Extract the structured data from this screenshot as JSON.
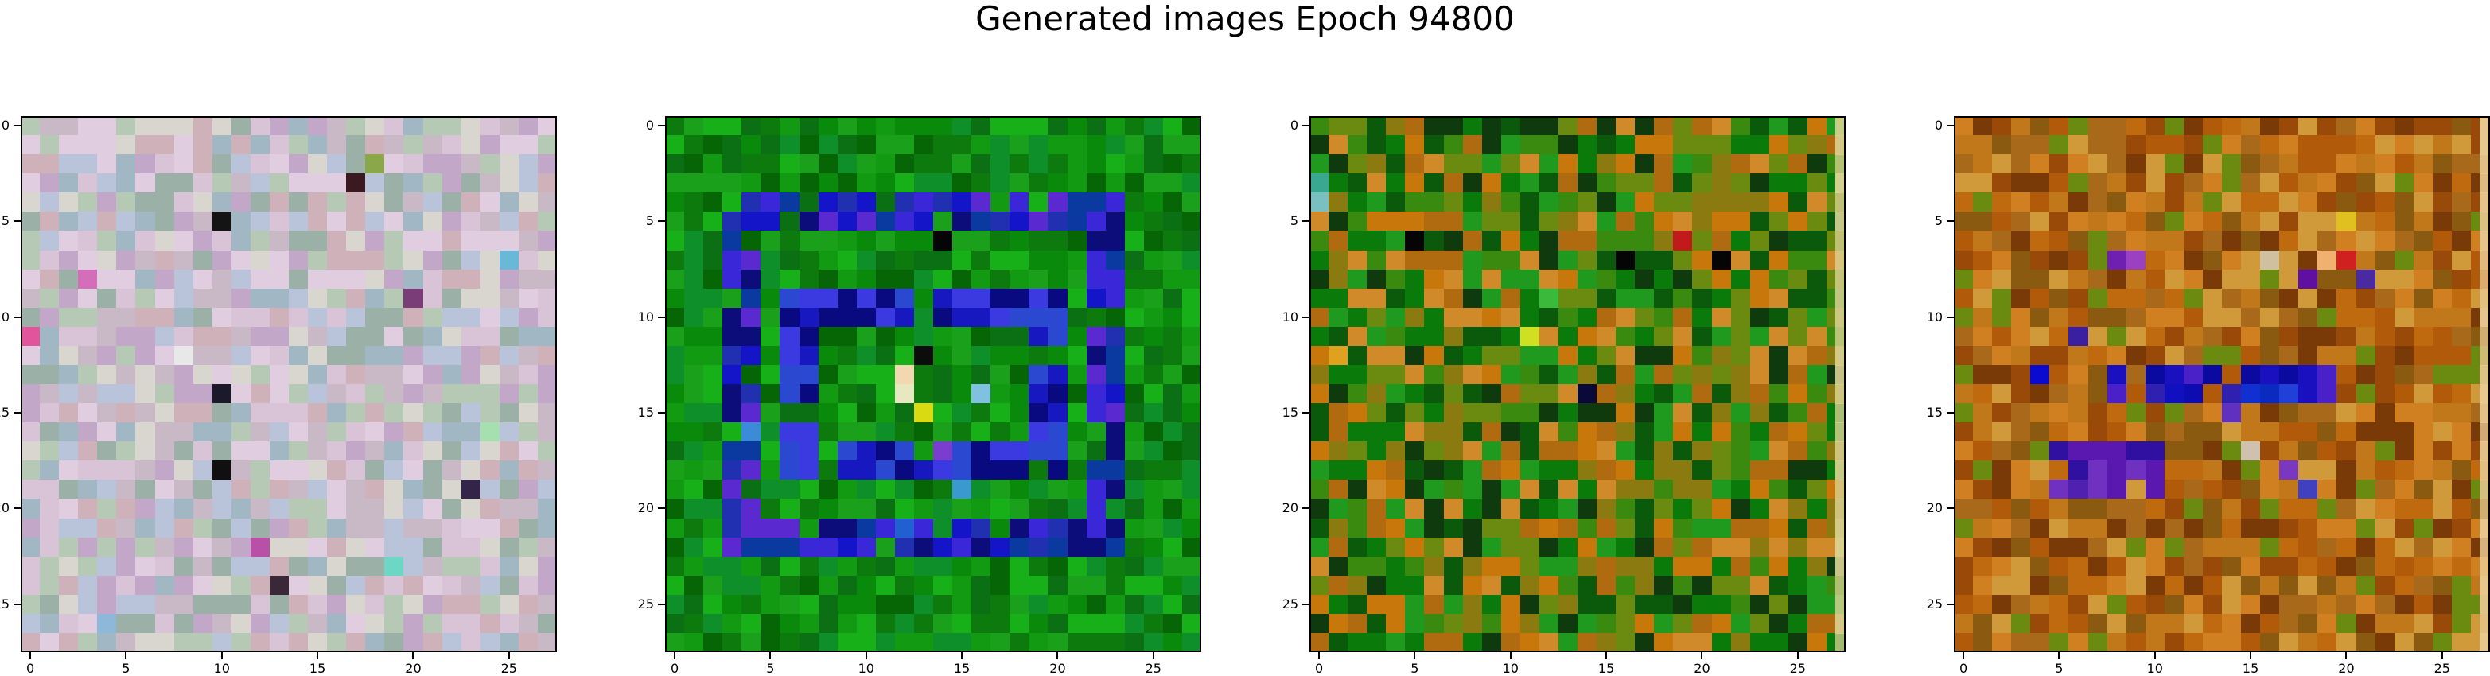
{
  "figure": {
    "title": "Generated images Epoch 94800"
  },
  "chart_data": [
    {
      "type": "heatmap",
      "grid": [
        28,
        28
      ],
      "xlim": [
        -0.5,
        27.5
      ],
      "ylim": [
        27.5,
        -0.5
      ],
      "x_ticks": [
        0,
        5,
        10,
        15,
        20,
        25
      ],
      "y_ticks": [
        0,
        5,
        10,
        15,
        20,
        25
      ],
      "palette": [
        "#c9b8c6",
        "#b5c9b4",
        "#d8c4d6",
        "#9bb0a6",
        "#c2a7c9",
        "#d9d6cf",
        "#a2b7c4",
        "#cfb2b9",
        "#b9c3d9",
        "#e0cde0"
      ],
      "accents": [
        [
          2,
          18,
          "#8aa84a"
        ],
        [
          3,
          17,
          "#3a1a20"
        ],
        [
          5,
          10,
          "#141414"
        ],
        [
          8,
          3,
          "#d26fb8"
        ],
        [
          9,
          20,
          "#7a3d78"
        ],
        [
          11,
          0,
          "#e2549c"
        ],
        [
          14,
          10,
          "#1a1a2a"
        ],
        [
          18,
          10,
          "#101010"
        ],
        [
          19,
          23,
          "#33244a"
        ],
        [
          23,
          19,
          "#6ed6c5"
        ],
        [
          24,
          13,
          "#3a2838"
        ],
        [
          7,
          25,
          "#68b8d8"
        ],
        [
          12,
          8,
          "#e8e8e8"
        ],
        [
          16,
          24,
          "#a7e0b0"
        ],
        [
          22,
          12,
          "#b94fa6"
        ],
        [
          26,
          4,
          "#8eb8d9"
        ]
      ],
      "right_band": "",
      "accent_boxes": []
    },
    {
      "type": "heatmap",
      "grid": [
        28,
        28
      ],
      "xlim": [
        -0.5,
        27.5
      ],
      "ylim": [
        27.5,
        -0.5
      ],
      "x_ticks": [
        0,
        5,
        10,
        15,
        20,
        25
      ],
      "y_ticks": [
        0,
        5,
        10,
        15,
        20,
        25
      ],
      "palette": [
        "#0a8a0a",
        "#0c7a0c",
        "#129a12",
        "#066606",
        "#0f8f2a",
        "#1aa01a",
        "#0b6f14",
        "#18b018"
      ],
      "accents": [
        [
          13,
          12,
          "#f2d8b0"
        ],
        [
          14,
          12,
          "#e8e8c0"
        ],
        [
          15,
          13,
          "#dada12"
        ],
        [
          12,
          13,
          "#0c0c0c"
        ],
        [
          6,
          14,
          "#050505"
        ],
        [
          16,
          4,
          "#3b8bd8"
        ],
        [
          17,
          14,
          "#7a3dd0"
        ],
        [
          19,
          15,
          "#3a9ad0"
        ],
        [
          14,
          16,
          "#80c0e0"
        ],
        [
          21,
          12,
          "#2060d0"
        ]
      ],
      "right_band": "",
      "accent_boxes": [
        {
          "rows": [
            4,
            22
          ],
          "cols": [
            3,
            23
          ],
          "ring": 2,
          "colors": [
            "#1414c8",
            "#2030b0",
            "#3a28d8",
            "#0a3aa0",
            "#5a2ad0",
            "#0c0c7a"
          ]
        },
        {
          "rows": [
            9,
            18
          ],
          "cols": [
            6,
            20
          ],
          "ring": 2,
          "colors": [
            "#1818c0",
            "#2a48d0",
            "#0a0a80",
            "#3a3ae0"
          ]
        }
      ]
    },
    {
      "type": "heatmap",
      "grid": [
        28,
        28
      ],
      "xlim": [
        -0.5,
        27.5
      ],
      "ylim": [
        27.5,
        -0.5
      ],
      "x_ticks": [
        0,
        5,
        10,
        15,
        20,
        25
      ],
      "y_ticks": [
        0,
        5,
        10,
        15,
        20,
        25
      ],
      "palette": [
        "#0a7a0a",
        "#3a8a10",
        "#6a8a10",
        "#0b5a0b",
        "#1f9a1f",
        "#b06a10",
        "#c8780a",
        "#8a7a10",
        "#0e3a0e",
        "#d08a2a"
      ],
      "accents": [
        [
          6,
          5,
          "#050505"
        ],
        [
          7,
          16,
          "#050505"
        ],
        [
          11,
          11,
          "#d0e020"
        ],
        [
          9,
          12,
          "#3aba3a"
        ],
        [
          6,
          19,
          "#c01a1a"
        ],
        [
          7,
          21,
          "#050505"
        ],
        [
          14,
          14,
          "#0a0a3a"
        ],
        [
          3,
          0,
          "#3aa890"
        ],
        [
          4,
          0,
          "#7ac0c0"
        ],
        [
          12,
          1,
          "#e0a020"
        ]
      ],
      "right_band": "#d8d090",
      "accent_boxes": []
    },
    {
      "type": "heatmap",
      "grid": [
        28,
        28
      ],
      "xlim": [
        -0.5,
        27.5
      ],
      "ylim": [
        27.5,
        -0.5
      ],
      "x_ticks": [
        0,
        5,
        10,
        15,
        20,
        25
      ],
      "y_ticks": [
        0,
        5,
        10,
        15,
        20,
        25
      ],
      "palette": [
        "#c06a10",
        "#b05a0a",
        "#d08020",
        "#8a5a10",
        "#a86a1a",
        "#6a8a10",
        "#c0781a",
        "#9a4a08",
        "#d09a3a",
        "#7a3a08"
      ],
      "accents": [
        [
          7,
          8,
          "#7020b0"
        ],
        [
          7,
          9,
          "#9a40c0"
        ],
        [
          8,
          18,
          "#6010a0"
        ],
        [
          8,
          21,
          "#4a2aa0"
        ],
        [
          11,
          6,
          "#3a20a0"
        ],
        [
          13,
          4,
          "#0a0ad0"
        ],
        [
          14,
          11,
          "#1010c0"
        ],
        [
          14,
          12,
          "#0c0cb0"
        ],
        [
          14,
          15,
          "#1030d0"
        ],
        [
          14,
          16,
          "#0a2ac0"
        ],
        [
          14,
          17,
          "#2040d8"
        ],
        [
          15,
          14,
          "#6030c0"
        ],
        [
          19,
          6,
          "#5020b0"
        ],
        [
          19,
          18,
          "#4040c0"
        ],
        [
          18,
          17,
          "#7a38c0"
        ],
        [
          7,
          16,
          "#d0c0a0"
        ],
        [
          7,
          19,
          "#f0b070"
        ],
        [
          7,
          20,
          "#d02020"
        ],
        [
          5,
          20,
          "#e0c020"
        ],
        [
          17,
          15,
          "#d0c0b0"
        ]
      ],
      "right_band": "#e8c890",
      "accent_boxes": [
        {
          "rows": [
            13,
            14
          ],
          "cols": [
            8,
            19
          ],
          "ring": 2,
          "colors": [
            "#1a10c0",
            "#3020b0",
            "#0a0aa0",
            "#4a20c8"
          ]
        },
        {
          "rows": [
            17,
            19
          ],
          "cols": [
            5,
            10
          ],
          "ring": 2,
          "colors": [
            "#5a18b0",
            "#3010a0",
            "#7030c0"
          ]
        }
      ]
    }
  ]
}
